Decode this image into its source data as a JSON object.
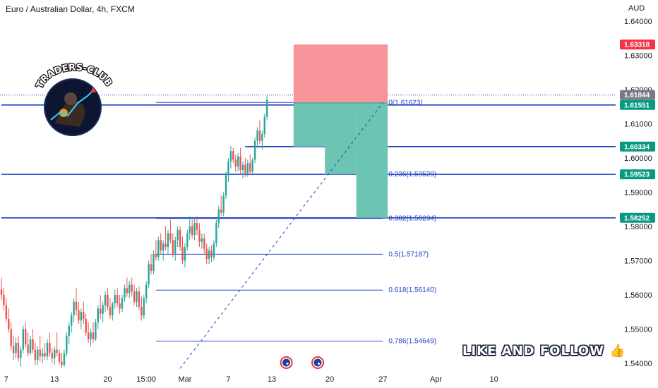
{
  "header": {
    "title": "Euro / Australian Dollar, 4h, FXCM",
    "currency": "AUD"
  },
  "logo_text": "TRADERS-CLUB",
  "promo_text": "LIKE AND FOLLOW",
  "promo_icon": "thumbs-up-icon",
  "colors": {
    "up": "#26a69a",
    "down": "#ef5350",
    "level_line": "#2a47c9",
    "stop_zone": "#f8959a",
    "target_zone": "#6cc4b2",
    "tag_green": "#089981",
    "tag_red": "#f23645",
    "tag_gray": "#787b86"
  },
  "chart_data": {
    "type": "candlestick",
    "title": "Euro / Australian Dollar, 4h, FXCM",
    "ylabel": "AUD",
    "ylim": [
      1.5385,
      1.6475
    ],
    "y_ticks": [
      "1.64000",
      "1.63000",
      "1.62000",
      "1.61000",
      "1.60000",
      "1.59000",
      "1.58000",
      "1.57000",
      "1.56000",
      "1.55000",
      "1.54000"
    ],
    "x_ticks": [
      {
        "label": "7",
        "i": 2
      },
      {
        "label": "13",
        "i": 22
      },
      {
        "label": "20",
        "i": 44
      },
      {
        "label": "15:00",
        "i": 60
      },
      {
        "label": "Mar",
        "i": 76
      },
      {
        "label": "7",
        "i": 94
      },
      {
        "label": "13",
        "i": 112
      },
      {
        "label": "20",
        "i": 136
      },
      {
        "label": "27",
        "i": 158
      },
      {
        "label": "Apr",
        "i": 180
      },
      {
        "label": "10",
        "i": 204
      }
    ],
    "candles": [
      {
        "o": 1.5615,
        "h": 1.565,
        "l": 1.5585,
        "c": 1.56
      },
      {
        "o": 1.56,
        "h": 1.562,
        "l": 1.5555,
        "c": 1.557
      },
      {
        "o": 1.557,
        "h": 1.559,
        "l": 1.552,
        "c": 1.553
      },
      {
        "o": 1.553,
        "h": 1.556,
        "l": 1.549,
        "c": 1.55
      },
      {
        "o": 1.55,
        "h": 1.552,
        "l": 1.544,
        "c": 1.545
      },
      {
        "o": 1.545,
        "h": 1.548,
        "l": 1.541,
        "c": 1.543
      },
      {
        "o": 1.543,
        "h": 1.5475,
        "l": 1.5415,
        "c": 1.546
      },
      {
        "o": 1.546,
        "h": 1.548,
        "l": 1.5405,
        "c": 1.5415
      },
      {
        "o": 1.5415,
        "h": 1.545,
        "l": 1.539,
        "c": 1.544
      },
      {
        "o": 1.544,
        "h": 1.551,
        "l": 1.543,
        "c": 1.55
      },
      {
        "o": 1.55,
        "h": 1.552,
        "l": 1.5445,
        "c": 1.5455
      },
      {
        "o": 1.5455,
        "h": 1.549,
        "l": 1.542,
        "c": 1.543
      },
      {
        "o": 1.543,
        "h": 1.548,
        "l": 1.5425,
        "c": 1.547
      },
      {
        "o": 1.547,
        "h": 1.55,
        "l": 1.543,
        "c": 1.544
      },
      {
        "o": 1.544,
        "h": 1.546,
        "l": 1.5395,
        "c": 1.541
      },
      {
        "o": 1.541,
        "h": 1.545,
        "l": 1.5395,
        "c": 1.544
      },
      {
        "o": 1.544,
        "h": 1.548,
        "l": 1.5405,
        "c": 1.542
      },
      {
        "o": 1.542,
        "h": 1.5445,
        "l": 1.54,
        "c": 1.543
      },
      {
        "o": 1.543,
        "h": 1.546,
        "l": 1.541,
        "c": 1.542
      },
      {
        "o": 1.542,
        "h": 1.547,
        "l": 1.541,
        "c": 1.546
      },
      {
        "o": 1.546,
        "h": 1.549,
        "l": 1.542,
        "c": 1.543
      },
      {
        "o": 1.543,
        "h": 1.5445,
        "l": 1.54,
        "c": 1.5415
      },
      {
        "o": 1.5415,
        "h": 1.545,
        "l": 1.5395,
        "c": 1.544
      },
      {
        "o": 1.544,
        "h": 1.549,
        "l": 1.542,
        "c": 1.543
      },
      {
        "o": 1.543,
        "h": 1.544,
        "l": 1.5395,
        "c": 1.5405
      },
      {
        "o": 1.5405,
        "h": 1.543,
        "l": 1.5385,
        "c": 1.5395
      },
      {
        "o": 1.5395,
        "h": 1.544,
        "l": 1.539,
        "c": 1.543
      },
      {
        "o": 1.543,
        "h": 1.549,
        "l": 1.542,
        "c": 1.548
      },
      {
        "o": 1.548,
        "h": 1.552,
        "l": 1.5455,
        "c": 1.551
      },
      {
        "o": 1.551,
        "h": 1.555,
        "l": 1.549,
        "c": 1.554
      },
      {
        "o": 1.554,
        "h": 1.559,
        "l": 1.552,
        "c": 1.558
      },
      {
        "o": 1.558,
        "h": 1.562,
        "l": 1.554,
        "c": 1.5555
      },
      {
        "o": 1.5555,
        "h": 1.558,
        "l": 1.5515,
        "c": 1.5525
      },
      {
        "o": 1.5525,
        "h": 1.556,
        "l": 1.55,
        "c": 1.555
      },
      {
        "o": 1.555,
        "h": 1.558,
        "l": 1.5515,
        "c": 1.553
      },
      {
        "o": 1.553,
        "h": 1.5545,
        "l": 1.548,
        "c": 1.549
      },
      {
        "o": 1.549,
        "h": 1.552,
        "l": 1.546,
        "c": 1.547
      },
      {
        "o": 1.547,
        "h": 1.55,
        "l": 1.545,
        "c": 1.549
      },
      {
        "o": 1.549,
        "h": 1.552,
        "l": 1.546,
        "c": 1.547
      },
      {
        "o": 1.547,
        "h": 1.553,
        "l": 1.5465,
        "c": 1.552
      },
      {
        "o": 1.552,
        "h": 1.557,
        "l": 1.55,
        "c": 1.556
      },
      {
        "o": 1.556,
        "h": 1.56,
        "l": 1.553,
        "c": 1.5545
      },
      {
        "o": 1.5545,
        "h": 1.558,
        "l": 1.552,
        "c": 1.557
      },
      {
        "o": 1.557,
        "h": 1.561,
        "l": 1.555,
        "c": 1.56
      },
      {
        "o": 1.56,
        "h": 1.562,
        "l": 1.5555,
        "c": 1.5565
      },
      {
        "o": 1.5565,
        "h": 1.559,
        "l": 1.553,
        "c": 1.554
      },
      {
        "o": 1.554,
        "h": 1.558,
        "l": 1.5525,
        "c": 1.5575
      },
      {
        "o": 1.5575,
        "h": 1.5615,
        "l": 1.556,
        "c": 1.56
      },
      {
        "o": 1.56,
        "h": 1.562,
        "l": 1.5565,
        "c": 1.5575
      },
      {
        "o": 1.5575,
        "h": 1.56,
        "l": 1.5545,
        "c": 1.556
      },
      {
        "o": 1.556,
        "h": 1.56,
        "l": 1.555,
        "c": 1.559
      },
      {
        "o": 1.559,
        "h": 1.563,
        "l": 1.558,
        "c": 1.562
      },
      {
        "o": 1.562,
        "h": 1.565,
        "l": 1.5595,
        "c": 1.5605
      },
      {
        "o": 1.5605,
        "h": 1.564,
        "l": 1.559,
        "c": 1.563
      },
      {
        "o": 1.563,
        "h": 1.565,
        "l": 1.5595,
        "c": 1.561
      },
      {
        "o": 1.561,
        "h": 1.563,
        "l": 1.557,
        "c": 1.558
      },
      {
        "o": 1.558,
        "h": 1.562,
        "l": 1.5565,
        "c": 1.561
      },
      {
        "o": 1.561,
        "h": 1.5625,
        "l": 1.5555,
        "c": 1.5565
      },
      {
        "o": 1.5565,
        "h": 1.5595,
        "l": 1.5525,
        "c": 1.554
      },
      {
        "o": 1.554,
        "h": 1.56,
        "l": 1.553,
        "c": 1.559
      },
      {
        "o": 1.559,
        "h": 1.564,
        "l": 1.5575,
        "c": 1.563
      },
      {
        "o": 1.563,
        "h": 1.57,
        "l": 1.562,
        "c": 1.569
      },
      {
        "o": 1.569,
        "h": 1.572,
        "l": 1.566,
        "c": 1.567
      },
      {
        "o": 1.567,
        "h": 1.573,
        "l": 1.566,
        "c": 1.572
      },
      {
        "o": 1.572,
        "h": 1.576,
        "l": 1.57,
        "c": 1.571
      },
      {
        "o": 1.571,
        "h": 1.577,
        "l": 1.57,
        "c": 1.576
      },
      {
        "o": 1.576,
        "h": 1.578,
        "l": 1.572,
        "c": 1.573
      },
      {
        "o": 1.573,
        "h": 1.576,
        "l": 1.57,
        "c": 1.575
      },
      {
        "o": 1.575,
        "h": 1.58,
        "l": 1.573,
        "c": 1.574
      },
      {
        "o": 1.574,
        "h": 1.579,
        "l": 1.572,
        "c": 1.578
      },
      {
        "o": 1.578,
        "h": 1.582,
        "l": 1.575,
        "c": 1.576
      },
      {
        "o": 1.576,
        "h": 1.578,
        "l": 1.571,
        "c": 1.572
      },
      {
        "o": 1.572,
        "h": 1.577,
        "l": 1.57,
        "c": 1.576
      },
      {
        "o": 1.576,
        "h": 1.58,
        "l": 1.574,
        "c": 1.579
      },
      {
        "o": 1.579,
        "h": 1.58,
        "l": 1.573,
        "c": 1.574
      },
      {
        "o": 1.574,
        "h": 1.577,
        "l": 1.569,
        "c": 1.57
      },
      {
        "o": 1.57,
        "h": 1.575,
        "l": 1.568,
        "c": 1.574
      },
      {
        "o": 1.574,
        "h": 1.579,
        "l": 1.573,
        "c": 1.578
      },
      {
        "o": 1.578,
        "h": 1.583,
        "l": 1.576,
        "c": 1.58
      },
      {
        "o": 1.58,
        "h": 1.582,
        "l": 1.5765,
        "c": 1.5775
      },
      {
        "o": 1.5775,
        "h": 1.5825,
        "l": 1.576,
        "c": 1.581
      },
      {
        "o": 1.581,
        "h": 1.583,
        "l": 1.5775,
        "c": 1.579
      },
      {
        "o": 1.579,
        "h": 1.581,
        "l": 1.574,
        "c": 1.5755
      },
      {
        "o": 1.5755,
        "h": 1.578,
        "l": 1.5735,
        "c": 1.5765
      },
      {
        "o": 1.5765,
        "h": 1.578,
        "l": 1.572,
        "c": 1.5735
      },
      {
        "o": 1.5735,
        "h": 1.575,
        "l": 1.569,
        "c": 1.5705
      },
      {
        "o": 1.5705,
        "h": 1.574,
        "l": 1.569,
        "c": 1.573
      },
      {
        "o": 1.573,
        "h": 1.5745,
        "l": 1.5695,
        "c": 1.571
      },
      {
        "o": 1.571,
        "h": 1.576,
        "l": 1.57,
        "c": 1.575
      },
      {
        "o": 1.575,
        "h": 1.582,
        "l": 1.574,
        "c": 1.581
      },
      {
        "o": 1.581,
        "h": 1.586,
        "l": 1.5795,
        "c": 1.585
      },
      {
        "o": 1.585,
        "h": 1.589,
        "l": 1.583,
        "c": 1.584
      },
      {
        "o": 1.584,
        "h": 1.59,
        "l": 1.583,
        "c": 1.589
      },
      {
        "o": 1.589,
        "h": 1.596,
        "l": 1.588,
        "c": 1.595
      },
      {
        "o": 1.595,
        "h": 1.6,
        "l": 1.593,
        "c": 1.599
      },
      {
        "o": 1.599,
        "h": 1.6035,
        "l": 1.597,
        "c": 1.602
      },
      {
        "o": 1.602,
        "h": 1.603,
        "l": 1.5985,
        "c": 1.5995
      },
      {
        "o": 1.5995,
        "h": 1.601,
        "l": 1.596,
        "c": 1.5975
      },
      {
        "o": 1.5975,
        "h": 1.6015,
        "l": 1.596,
        "c": 1.6005
      },
      {
        "o": 1.6005,
        "h": 1.603,
        "l": 1.5955,
        "c": 1.5965
      },
      {
        "o": 1.5965,
        "h": 1.599,
        "l": 1.594,
        "c": 1.598
      },
      {
        "o": 1.598,
        "h": 1.6,
        "l": 1.5945,
        "c": 1.5955
      },
      {
        "o": 1.5955,
        "h": 1.5995,
        "l": 1.5945,
        "c": 1.5985
      },
      {
        "o": 1.5985,
        "h": 1.601,
        "l": 1.595,
        "c": 1.596
      },
      {
        "o": 1.596,
        "h": 1.6,
        "l": 1.595,
        "c": 1.5995
      },
      {
        "o": 1.5995,
        "h": 1.606,
        "l": 1.5985,
        "c": 1.605
      },
      {
        "o": 1.605,
        "h": 1.609,
        "l": 1.603,
        "c": 1.608
      },
      {
        "o": 1.608,
        "h": 1.611,
        "l": 1.604,
        "c": 1.605
      },
      {
        "o": 1.605,
        "h": 1.608,
        "l": 1.6025,
        "c": 1.607
      },
      {
        "o": 1.607,
        "h": 1.613,
        "l": 1.606,
        "c": 1.612
      },
      {
        "o": 1.612,
        "h": 1.6184,
        "l": 1.611,
        "c": 1.617
      }
    ]
  },
  "levels": [
    {
      "price": 1.60334,
      "x_start_i": 101
    },
    {
      "price": 1.59523,
      "x_start_i": 0
    },
    {
      "price": 1.58252,
      "x_start_i": 0
    },
    {
      "price": 1.61551,
      "x_start_i": 0
    }
  ],
  "fib_levels": [
    {
      "label": "0(1.61623)",
      "price": 1.61623
    },
    {
      "label": "0.236(1.59529)",
      "price": 1.59529
    },
    {
      "label": "0.382(1.58234)",
      "price": 1.58234
    },
    {
      "label": "0.5(1.57187)",
      "price": 1.57187
    },
    {
      "label": "0.618(1.56140)",
      "price": 1.5614
    },
    {
      "label": "0.786(1.54649)",
      "price": 1.54649
    }
  ],
  "fib_start_i": 64,
  "fib_end_i": 158,
  "trade_box": {
    "start_i": 121,
    "end_i": 160,
    "stop": 1.63318,
    "entry": 1.61623,
    "targets": [
      {
        "price": 1.60334,
        "until_i": 134
      },
      {
        "price": 1.59523,
        "until_i": 147
      },
      {
        "price": 1.58252,
        "until_i": 160
      }
    ]
  },
  "trend_line": {
    "from": {
      "i": 74,
      "price": 1.5385
    },
    "to": {
      "i": 158,
      "price": 1.6162
    }
  },
  "price_tags": [
    {
      "text": "1.63318",
      "price": 1.63318,
      "color": "#f23645"
    },
    {
      "text": "1.61844",
      "price": 1.61844,
      "color": "#787b86"
    },
    {
      "text": "1.61551",
      "price": 1.61551,
      "color": "#089981"
    },
    {
      "text": "1.60334",
      "price": 1.60334,
      "color": "#089981"
    },
    {
      "text": "1.59523",
      "price": 1.59523,
      "color": "#089981"
    },
    {
      "text": "1.58252",
      "price": 1.58252,
      "color": "#089981"
    }
  ],
  "event_markers": [
    {
      "i": 118,
      "icon": "australia-flag-icon"
    },
    {
      "i": 131,
      "icon": "eu-flag-icon"
    }
  ]
}
